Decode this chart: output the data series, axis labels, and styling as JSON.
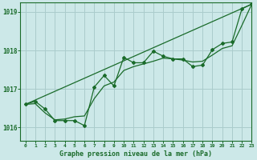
{
  "title": "Graphe pression niveau de la mer (hPa)",
  "bg_color": "#cce8e8",
  "grid_color": "#aacccc",
  "line_color": "#1a6b2a",
  "xlim": [
    -0.5,
    23
  ],
  "ylim": [
    1015.65,
    1019.25
  ],
  "yticks": [
    1016,
    1017,
    1018,
    1019
  ],
  "xticks": [
    0,
    1,
    2,
    3,
    4,
    5,
    6,
    7,
    8,
    9,
    10,
    11,
    12,
    13,
    14,
    15,
    16,
    17,
    18,
    19,
    20,
    21,
    22,
    23
  ],
  "trend_x": [
    0,
    23
  ],
  "trend_y": [
    1016.6,
    1019.2
  ],
  "s1_x": [
    0,
    1,
    2,
    3,
    4,
    5,
    6,
    7,
    8,
    9,
    10,
    11,
    12,
    13,
    14,
    15,
    16,
    17,
    18,
    19,
    20,
    21,
    22,
    23
  ],
  "s1_y": [
    1016.6,
    1016.68,
    1016.48,
    1016.18,
    1016.18,
    1016.18,
    1016.05,
    1017.05,
    1017.35,
    1017.08,
    1017.82,
    1017.68,
    1017.68,
    1017.98,
    1017.85,
    1017.78,
    1017.78,
    1017.58,
    1017.62,
    1018.02,
    1018.18,
    1018.22,
    1019.08,
    1019.2
  ],
  "s2_x": [
    0,
    1,
    2,
    3,
    4,
    5,
    6,
    7,
    8,
    9,
    10,
    11,
    12,
    13,
    14,
    15,
    16,
    17,
    18,
    19,
    20,
    21,
    22,
    23
  ],
  "s2_y": [
    1016.6,
    1016.62,
    1016.38,
    1016.2,
    1016.22,
    1016.28,
    1016.3,
    1016.75,
    1017.08,
    1017.18,
    1017.48,
    1017.58,
    1017.65,
    1017.72,
    1017.8,
    1017.78,
    1017.75,
    1017.7,
    1017.72,
    1017.88,
    1018.05,
    1018.12,
    1018.65,
    1019.2
  ]
}
